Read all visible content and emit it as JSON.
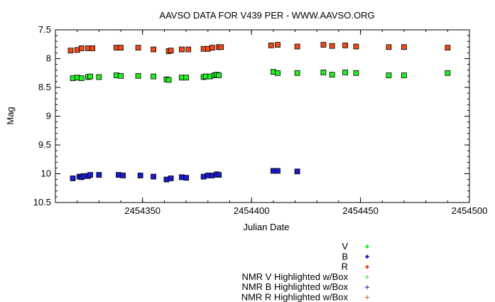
{
  "chart_data": {
    "type": "scatter",
    "title": "AAVSO DATA FOR V439 PER - WWW.AAVSO.ORG",
    "xlabel": "Julian Date",
    "ylabel": "Mag",
    "xlim": [
      2454310,
      2454500
    ],
    "ylim": [
      7.5,
      10.5
    ],
    "y_inverted": true,
    "grid": false,
    "legend_position": "bottom-right",
    "x_ticks": [
      2454350,
      2454400,
      2454450,
      2454500
    ],
    "x_tick_labels": [
      "2454350",
      "2454400",
      "2454450",
      "2454500"
    ],
    "y_ticks": [
      7.5,
      8,
      8.5,
      9,
      9.5,
      10,
      10.5
    ],
    "y_tick_labels": [
      "7.5",
      "8",
      "8.5",
      "9",
      "9.5",
      "10",
      "10.5"
    ],
    "legend": [
      {
        "label": "V",
        "color": "#22ee22",
        "marker": "diamond"
      },
      {
        "label": "B",
        "color": "#1a1ad0",
        "marker": "diamond"
      },
      {
        "label": "R",
        "color": "#ee4a1a",
        "marker": "diamond"
      },
      {
        "label": "NMR V Highlighted w/Box",
        "color": "#22ee22",
        "marker": "plus"
      },
      {
        "label": "NMR B Highlighted w/Box",
        "color": "#1a1ad0",
        "marker": "plus"
      },
      {
        "label": "NMR R Highlighted w/Box",
        "color": "#ee4a1a",
        "marker": "plus"
      }
    ],
    "series": [
      {
        "name": "V",
        "color": "#22ee22",
        "points": [
          [
            2454318,
            8.34
          ],
          [
            2454320,
            8.33
          ],
          [
            2454322,
            8.34
          ],
          [
            2454325,
            8.32
          ],
          [
            2454326,
            8.31
          ],
          [
            2454330,
            8.32
          ],
          [
            2454338,
            8.29
          ],
          [
            2454340,
            8.3
          ],
          [
            2454348,
            8.3
          ],
          [
            2454355,
            8.31
          ],
          [
            2454361,
            8.36
          ],
          [
            2454362,
            8.37
          ],
          [
            2454368,
            8.33
          ],
          [
            2454370,
            8.33
          ],
          [
            2454378,
            8.32
          ],
          [
            2454379,
            8.31
          ],
          [
            2454381,
            8.31
          ],
          [
            2454383,
            8.29
          ],
          [
            2454384,
            8.28
          ],
          [
            2454385,
            8.29
          ],
          [
            2454410,
            8.23
          ],
          [
            2454412,
            8.25
          ],
          [
            2454421,
            8.25
          ],
          [
            2454433,
            8.24
          ],
          [
            2454437,
            8.28
          ],
          [
            2454443,
            8.24
          ],
          [
            2454448,
            8.25
          ],
          [
            2454463,
            8.29
          ],
          [
            2454470,
            8.29
          ],
          [
            2454490,
            8.25
          ]
        ]
      },
      {
        "name": "B",
        "color": "#1a1ad0",
        "points": [
          [
            2454318,
            10.08
          ],
          [
            2454321,
            10.05
          ],
          [
            2454322,
            10.06
          ],
          [
            2454323,
            10.04
          ],
          [
            2454325,
            10.04
          ],
          [
            2454326,
            10.02
          ],
          [
            2454330,
            10.02
          ],
          [
            2454339,
            10.02
          ],
          [
            2454341,
            10.03
          ],
          [
            2454349,
            10.03
          ],
          [
            2454355,
            10.05
          ],
          [
            2454361,
            10.1
          ],
          [
            2454363,
            10.08
          ],
          [
            2454368,
            10.06
          ],
          [
            2454370,
            10.07
          ],
          [
            2454378,
            10.05
          ],
          [
            2454380,
            10.03
          ],
          [
            2454382,
            10.03
          ],
          [
            2454384,
            10.01
          ],
          [
            2454385,
            10.02
          ],
          [
            2454410,
            9.95
          ],
          [
            2454412,
            9.95
          ],
          [
            2454421,
            9.96
          ]
        ]
      },
      {
        "name": "R",
        "color": "#ee4a1a",
        "points": [
          [
            2454317,
            7.86
          ],
          [
            2454320,
            7.85
          ],
          [
            2454322,
            7.82
          ],
          [
            2454325,
            7.82
          ],
          [
            2454327,
            7.82
          ],
          [
            2454338,
            7.81
          ],
          [
            2454340,
            7.81
          ],
          [
            2454348,
            7.81
          ],
          [
            2454355,
            7.84
          ],
          [
            2454362,
            7.87
          ],
          [
            2454363,
            7.86
          ],
          [
            2454368,
            7.84
          ],
          [
            2454371,
            7.84
          ],
          [
            2454378,
            7.83
          ],
          [
            2454380,
            7.83
          ],
          [
            2454382,
            7.81
          ],
          [
            2454385,
            7.8
          ],
          [
            2454386,
            7.8
          ],
          [
            2454409,
            7.77
          ],
          [
            2454412,
            7.76
          ],
          [
            2454421,
            7.79
          ],
          [
            2454433,
            7.76
          ],
          [
            2454437,
            7.78
          ],
          [
            2454443,
            7.77
          ],
          [
            2454448,
            7.79
          ],
          [
            2454463,
            7.8
          ],
          [
            2454470,
            7.8
          ],
          [
            2454490,
            7.81
          ]
        ]
      }
    ]
  }
}
